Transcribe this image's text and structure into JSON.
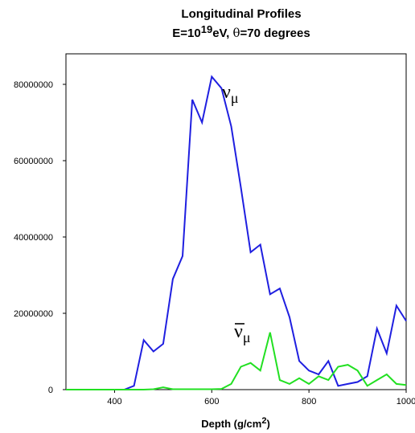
{
  "chart_data": {
    "type": "line",
    "title_line1": "Longitudinal Profiles",
    "title_line2_prefix": "E=10",
    "title_line2_exponent": "19",
    "title_line2_mid": "eV, ",
    "title_line2_theta": "θ",
    "title_line2_suffix": "=70 degrees",
    "xlabel_prefix": "Depth (g/cm",
    "xlabel_exponent": "2",
    "xlabel_suffix": ")",
    "ylabel": "",
    "xlim": [
      300,
      1000
    ],
    "ylim": [
      0,
      88000000
    ],
    "xticks": [
      400,
      600,
      800,
      1000
    ],
    "yticks": [
      0,
      20000000,
      40000000,
      60000000,
      80000000
    ],
    "xtick_labels": [
      "400",
      "600",
      "800",
      "1000"
    ],
    "ytick_labels": [
      "0",
      "20000000",
      "40000000",
      "60000000",
      "80000000"
    ],
    "grid": false,
    "series": [
      {
        "name": "ν",
        "subscript": "μ",
        "overbar": false,
        "color": "#1f1fe0",
        "x": [
          300,
          420,
          440,
          460,
          480,
          500,
          520,
          540,
          560,
          580,
          600,
          620,
          640,
          660,
          680,
          700,
          720,
          740,
          760,
          780,
          800,
          820,
          840,
          860,
          880,
          900,
          920,
          940,
          960,
          980,
          1000
        ],
        "values": [
          0,
          0,
          1000000,
          13000000,
          10000000,
          12000000,
          29000000,
          35000000,
          76000000,
          70000000,
          82000000,
          79000000,
          69000000,
          53000000,
          36000000,
          38000000,
          25000000,
          26500000,
          19000000,
          7500000,
          5000000,
          4000000,
          7500000,
          1000000,
          1500000,
          2000000,
          3500000,
          16000000,
          9500000,
          22000000,
          18000000
        ]
      },
      {
        "name": "ν",
        "subscript": "μ",
        "overbar": true,
        "color": "#22e022",
        "x": [
          300,
          440,
          460,
          480,
          500,
          520,
          540,
          560,
          580,
          600,
          620,
          640,
          660,
          680,
          700,
          720,
          740,
          760,
          780,
          800,
          820,
          840,
          860,
          880,
          900,
          920,
          940,
          960,
          980,
          1000
        ],
        "values": [
          0,
          0,
          0,
          100000,
          600000,
          100000,
          100000,
          100000,
          100000,
          100000,
          200000,
          1500000,
          6000000,
          7000000,
          5000000,
          15000000,
          2500000,
          1500000,
          3000000,
          1500000,
          3500000,
          2500000,
          6000000,
          6500000,
          5000000,
          1000000,
          2500000,
          4000000,
          1500000,
          1200000
        ]
      }
    ]
  }
}
